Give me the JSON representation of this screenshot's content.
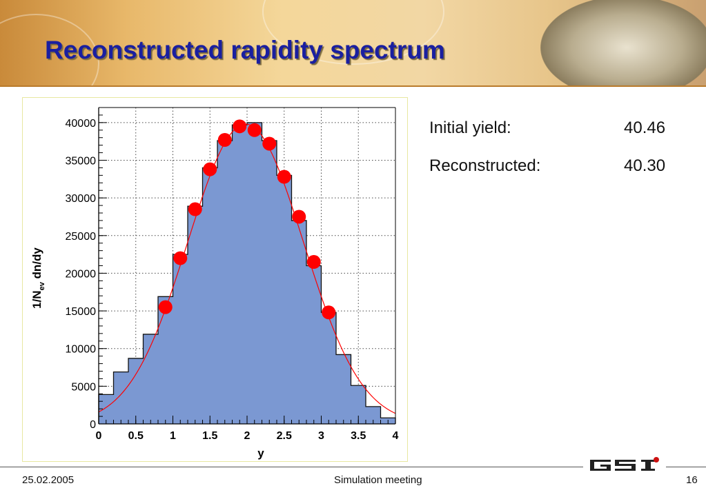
{
  "slide": {
    "title": "Reconstructed rapidity spectrum",
    "footer_date": "25.02.2005",
    "footer_center": "Simulation meeting",
    "page_number": "16",
    "logo_text": "GSI"
  },
  "info": {
    "rows": [
      {
        "label": "Initial yield:",
        "value": "40.46"
      },
      {
        "label": "Reconstructed:",
        "value": "40.30"
      }
    ]
  },
  "colors": {
    "title": "#1a1fa0",
    "hist_fill": "#7b98d2",
    "points": "#ff0000",
    "fit_line": "#ff0000"
  },
  "chart_data": {
    "type": "bar",
    "title": "",
    "xlabel": "y",
    "ylabel_main": "1/N",
    "ylabel_sub": "ev",
    "ylabel_rest": " dn/dy",
    "xlim": [
      0,
      4
    ],
    "ylim": [
      0,
      42000
    ],
    "grid": true,
    "x_ticks": [
      0,
      0.5,
      1,
      1.5,
      2,
      2.5,
      3,
      3.5,
      4
    ],
    "x_tick_labels": [
      "0",
      "0.5",
      "1",
      "1.5",
      "2",
      "2.5",
      "3",
      "3.5",
      "4"
    ],
    "y_ticks": [
      0,
      5000,
      10000,
      15000,
      20000,
      25000,
      30000,
      35000,
      40000
    ],
    "y_tick_labels": [
      "0",
      "5000",
      "10000",
      "15000",
      "20000",
      "25000",
      "30000",
      "35000",
      "40000"
    ],
    "histogram": {
      "bin_width": 0.2,
      "bin_edges": [
        0,
        0.2,
        0.4,
        0.6,
        0.8,
        1.0,
        1.2,
        1.4,
        1.6,
        1.8,
        2.0,
        2.2,
        2.4,
        2.6,
        2.8,
        3.0,
        3.2,
        3.4,
        3.6,
        3.8,
        4.0
      ],
      "values": [
        3900,
        6900,
        8700,
        11900,
        16900,
        22500,
        28900,
        34000,
        37600,
        39700,
        40000,
        37600,
        33000,
        27000,
        21000,
        14800,
        9200,
        5100,
        2300,
        800
      ]
    },
    "points": {
      "x": [
        0.9,
        1.1,
        1.3,
        1.5,
        1.7,
        1.9,
        2.1,
        2.3,
        2.5,
        2.7,
        2.9,
        3.1
      ],
      "y": [
        15500,
        22000,
        28500,
        33800,
        37700,
        39500,
        39000,
        37200,
        32800,
        27500,
        21500,
        14800
      ]
    },
    "fit": {
      "type": "gaussian",
      "amplitude": 39800,
      "mean": 1.98,
      "sigma": 0.78,
      "range": [
        0,
        4
      ]
    }
  }
}
